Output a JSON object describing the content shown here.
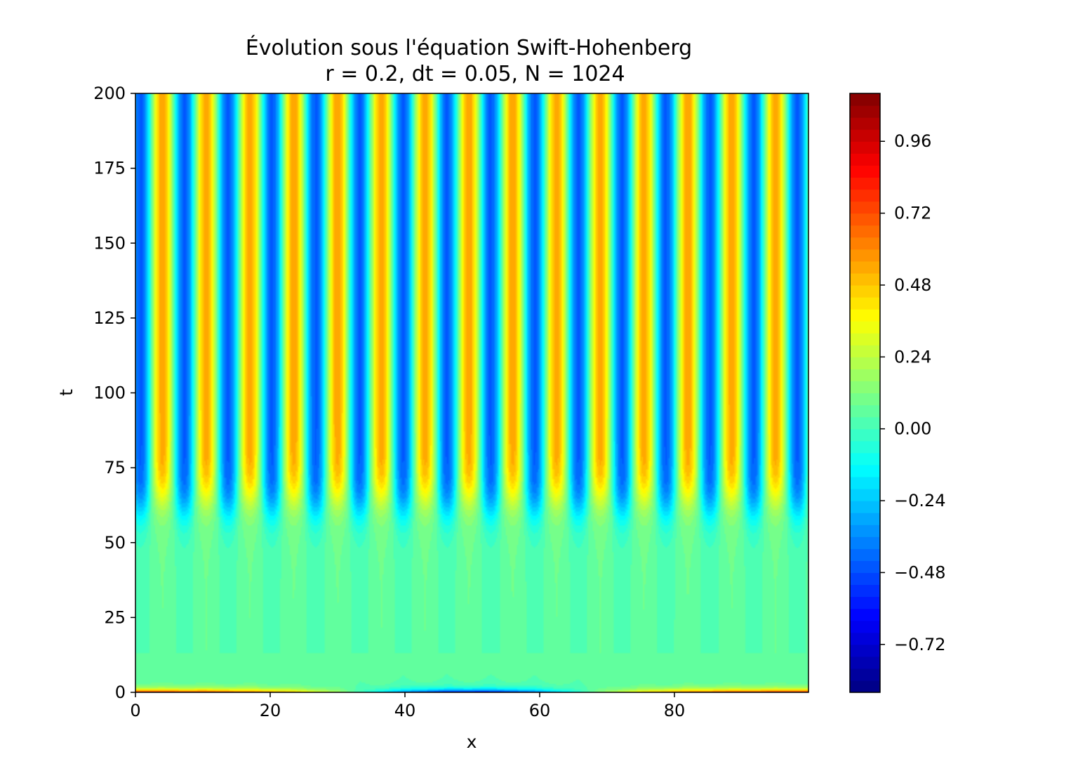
{
  "chart_data": {
    "type": "heatmap",
    "title_lines": [
      "Évolution sous l'équation Swift-Hohenberg",
      "r = 0.2, dt = 0.05, N = 1024"
    ],
    "xlabel": "x",
    "ylabel": "t",
    "xlim": [
      0,
      99.9
    ],
    "ylim": [
      0,
      200
    ],
    "xticks": [
      0,
      20,
      40,
      60,
      80
    ],
    "xtick_labels": [
      "0",
      "20",
      "40",
      "60",
      "80"
    ],
    "yticks": [
      0,
      25,
      50,
      75,
      100,
      125,
      150,
      175,
      200
    ],
    "ytick_labels": [
      "0",
      "25",
      "50",
      "75",
      "100",
      "125",
      "150",
      "175",
      "200"
    ],
    "colormap": "jet",
    "color_range": [
      -0.88,
      1.12
    ],
    "colorbar_ticks": [
      -0.72,
      -0.48,
      -0.24,
      0.0,
      0.24,
      0.48,
      0.72,
      0.96
    ],
    "colorbar_tick_labels": [
      "−0.72",
      "−0.48",
      "−0.24",
      "0.00",
      "0.24",
      "0.48",
      "0.72",
      "0.96"
    ],
    "colorbar_levels": 50,
    "pattern": {
      "description": "stationary stripes",
      "stripe_count": 15,
      "stripe_wavelength": 6.5,
      "stripe_amplitude": 0.5,
      "onset_time": 65,
      "background_value": 0.05
    }
  }
}
